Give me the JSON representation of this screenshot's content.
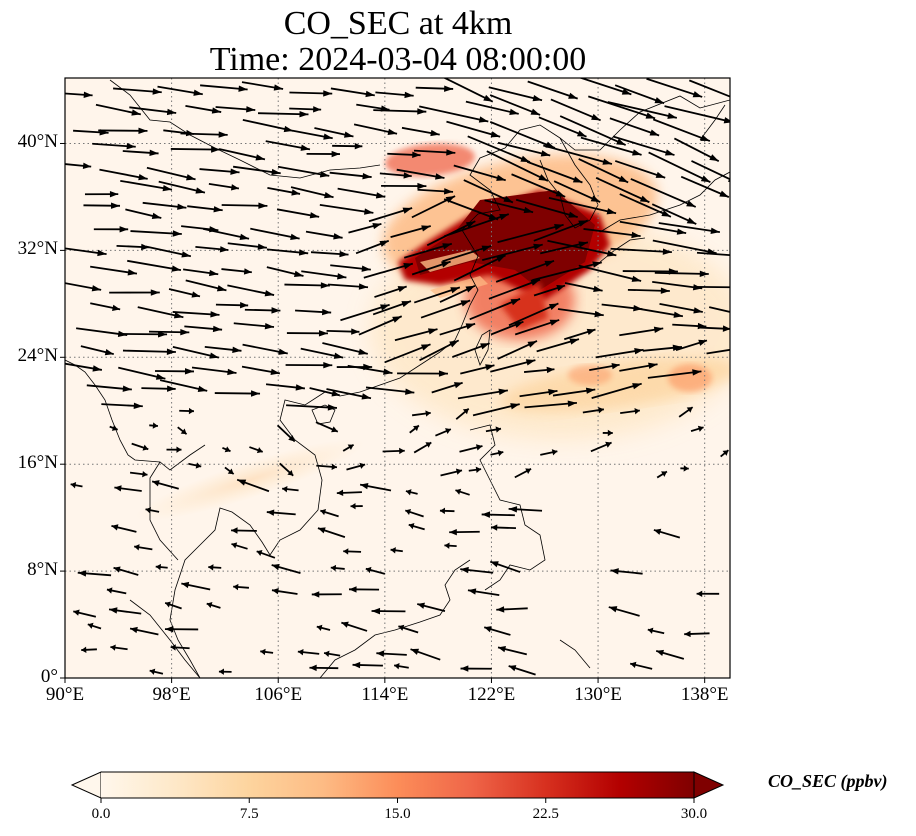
{
  "title": {
    "line1": "CO_SEC at 4km",
    "line2": "Time: 2024-03-04 08:00:00"
  },
  "map": {
    "lon_range": [
      90,
      139.9
    ],
    "lat_range": [
      0,
      44.9
    ],
    "background_color": "#fff5eb",
    "gridlines": "dotted",
    "xticks": [
      {
        "value": 90,
        "label": "90°E"
      },
      {
        "value": 98,
        "label": "98°E"
      },
      {
        "value": 106,
        "label": "106°E"
      },
      {
        "value": 114,
        "label": "114°E"
      },
      {
        "value": 122,
        "label": "122°E"
      },
      {
        "value": 130,
        "label": "130°E"
      },
      {
        "value": 138,
        "label": "138°E"
      }
    ],
    "yticks": [
      {
        "value": 0,
        "label": "0°"
      },
      {
        "value": 8,
        "label": "8°N"
      },
      {
        "value": 16,
        "label": "16°N"
      },
      {
        "value": 24,
        "label": "24°N"
      },
      {
        "value": 32,
        "label": "32°N"
      },
      {
        "value": 40,
        "label": "40°N"
      }
    ],
    "wind_pattern": {
      "north_of_20N": "westerly, pointing east",
      "south_of_16N": "weak easterly, pointing west"
    },
    "plume": {
      "center_region": "East China Sea / Yellow Sea",
      "max_value": 30.0
    }
  },
  "colorbar": {
    "label": "CO_SEC (ppbv)",
    "min": 0.0,
    "max": 30.0,
    "extend": "both",
    "colormap": "OrRd",
    "colors": [
      "#fff7ec",
      "#fee8c8",
      "#fdd49e",
      "#fdbb84",
      "#fc8d59",
      "#ef6548",
      "#d7301f",
      "#b30000",
      "#7f0000"
    ],
    "ticks": [
      {
        "value": 0.0,
        "label": "0.0"
      },
      {
        "value": 7.5,
        "label": "7.5"
      },
      {
        "value": 15.0,
        "label": "15.0"
      },
      {
        "value": 22.5,
        "label": "22.5"
      },
      {
        "value": 30.0,
        "label": "30.0"
      }
    ]
  }
}
